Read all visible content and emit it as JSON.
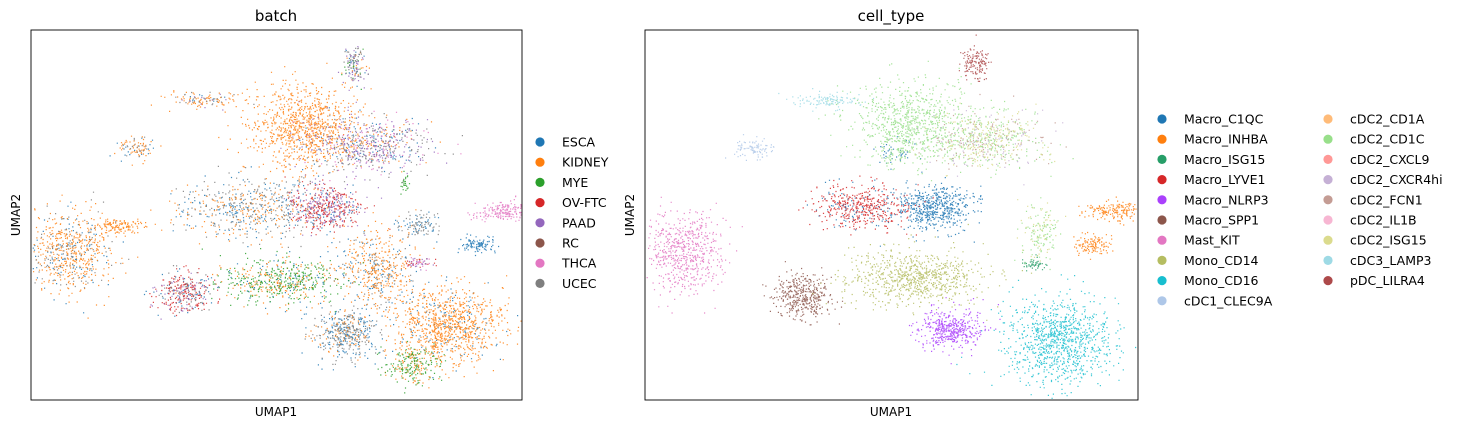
{
  "chart_data": [
    {
      "type": "scatter",
      "title": "batch",
      "xlabel": "UMAP1",
      "ylabel": "UMAP2",
      "xlim": [
        0,
        100
      ],
      "ylim": [
        0,
        100
      ],
      "grid": false,
      "ticks": false,
      "legend_position": "right",
      "series": [
        {
          "name": "ESCA",
          "color": "#1f77b4"
        },
        {
          "name": "KIDNEY",
          "color": "#ff7f0e"
        },
        {
          "name": "MYE",
          "color": "#2ca02c"
        },
        {
          "name": "OV-FTC",
          "color": "#d62728"
        },
        {
          "name": "PAAD",
          "color": "#9467bd"
        },
        {
          "name": "RC",
          "color": "#8c564b"
        },
        {
          "name": "THCA",
          "color": "#e377c2"
        },
        {
          "name": "UCEC",
          "color": "#7f7f7f"
        }
      ],
      "clusters": [
        {
          "x": 66,
          "y": 90,
          "sx": 1.2,
          "sy": 2.5,
          "n": 140,
          "mix": [
            [
              0,
              1
            ],
            [
              1,
              1
            ],
            [
              2,
              1
            ],
            [
              4,
              2
            ],
            [
              7,
              2
            ]
          ]
        },
        {
          "x": 35,
          "y": 81,
          "sx": 3.5,
          "sy": 1.0,
          "n": 120,
          "mix": [
            [
              1,
              3
            ],
            [
              0,
              1
            ],
            [
              4,
              1
            ],
            [
              7,
              1
            ]
          ]
        },
        {
          "x": 21,
          "y": 68,
          "sx": 2.0,
          "sy": 1.6,
          "n": 90,
          "mix": [
            [
              1,
              3
            ],
            [
              0,
              1
            ],
            [
              7,
              1
            ]
          ]
        },
        {
          "x": 56,
          "y": 74,
          "sx": 5.5,
          "sy": 5.5,
          "n": 900,
          "mix": [
            [
              1,
              1
            ]
          ]
        },
        {
          "x": 69,
          "y": 69,
          "sx": 6.5,
          "sy": 4.0,
          "n": 700,
          "mix": [
            [
              4,
              2
            ],
            [
              7,
              2
            ],
            [
              0,
              1
            ],
            [
              1,
              1
            ],
            [
              6,
              1
            ]
          ]
        },
        {
          "x": 45,
          "y": 52,
          "sx": 7.5,
          "sy": 4.0,
          "n": 600,
          "mix": [
            [
              1,
              2
            ],
            [
              0,
              2
            ],
            [
              7,
              2
            ]
          ]
        },
        {
          "x": 60,
          "y": 52,
          "sx": 3.8,
          "sy": 3.2,
          "n": 500,
          "mix": [
            [
              3,
              4
            ],
            [
              4,
              2
            ],
            [
              0,
              1
            ]
          ]
        },
        {
          "x": 8,
          "y": 40,
          "sx": 4.5,
          "sy": 5.5,
          "n": 650,
          "mix": [
            [
              1,
              4
            ],
            [
              0,
              1
            ],
            [
              7,
              1
            ]
          ]
        },
        {
          "x": 18,
          "y": 47,
          "sx": 2.5,
          "sy": 1.0,
          "n": 120,
          "mix": [
            [
              1,
              1
            ]
          ]
        },
        {
          "x": 31,
          "y": 29,
          "sx": 3.0,
          "sy": 3.0,
          "n": 350,
          "mix": [
            [
              3,
              3
            ],
            [
              0,
              1
            ],
            [
              7,
              1
            ],
            [
              4,
              1
            ]
          ]
        },
        {
          "x": 51,
          "y": 32,
          "sx": 6.5,
          "sy": 3.2,
          "n": 600,
          "mix": [
            [
              2,
              4
            ],
            [
              1,
              2
            ],
            [
              0,
              1
            ]
          ]
        },
        {
          "x": 70,
          "y": 35,
          "sx": 4.0,
          "sy": 5.0,
          "n": 500,
          "mix": [
            [
              1,
              4
            ],
            [
              0,
              1
            ],
            [
              7,
              1
            ]
          ]
        },
        {
          "x": 64,
          "y": 18,
          "sx": 3.2,
          "sy": 3.2,
          "n": 450,
          "mix": [
            [
              0,
              2
            ],
            [
              7,
              2
            ],
            [
              1,
              1
            ]
          ]
        },
        {
          "x": 85,
          "y": 20,
          "sx": 5.5,
          "sy": 5.0,
          "n": 1000,
          "mix": [
            [
              1,
              6
            ],
            [
              0,
              1
            ]
          ]
        },
        {
          "x": 78,
          "y": 9,
          "sx": 3.0,
          "sy": 2.5,
          "n": 250,
          "mix": [
            [
              2,
              4
            ],
            [
              1,
              2
            ]
          ]
        },
        {
          "x": 96,
          "y": 51,
          "sx": 3.0,
          "sy": 1.2,
          "n": 180,
          "mix": [
            [
              6,
              1
            ]
          ]
        },
        {
          "x": 91,
          "y": 42,
          "sx": 1.8,
          "sy": 1.2,
          "n": 110,
          "mix": [
            [
              0,
              1
            ]
          ]
        },
        {
          "x": 79,
          "y": 47,
          "sx": 2.0,
          "sy": 1.8,
          "n": 110,
          "mix": [
            [
              7,
              2
            ],
            [
              0,
              1
            ]
          ]
        },
        {
          "x": 79,
          "y": 37,
          "sx": 1.6,
          "sy": 0.8,
          "n": 60,
          "mix": [
            [
              4,
              1
            ],
            [
              6,
              1
            ],
            [
              3,
              1
            ]
          ]
        },
        {
          "x": 76,
          "y": 58,
          "sx": 0.5,
          "sy": 1.5,
          "n": 25,
          "mix": [
            [
              2,
              1
            ]
          ]
        }
      ]
    },
    {
      "type": "scatter",
      "title": "cell_type",
      "xlabel": "UMAP1",
      "ylabel": "UMAP2",
      "xlim": [
        0,
        100
      ],
      "ylim": [
        0,
        100
      ],
      "grid": false,
      "ticks": false,
      "legend_position": "right",
      "series": [
        {
          "name": "Macro_C1QC",
          "color": "#1f77b4"
        },
        {
          "name": "Macro_INHBA",
          "color": "#ff7f0e"
        },
        {
          "name": "Macro_ISG15",
          "color": "#279e68"
        },
        {
          "name": "Macro_LYVE1",
          "color": "#d62728"
        },
        {
          "name": "Macro_NLRP3",
          "color": "#aa40fc"
        },
        {
          "name": "Macro_SPP1",
          "color": "#8c564b"
        },
        {
          "name": "Mast_KIT",
          "color": "#e377c2"
        },
        {
          "name": "Mono_CD14",
          "color": "#b5bd61"
        },
        {
          "name": "Mono_CD16",
          "color": "#17becf"
        },
        {
          "name": "cDC1_CLEC9A",
          "color": "#aec7e8"
        },
        {
          "name": "cDC2_CD1A",
          "color": "#ffbb78"
        },
        {
          "name": "cDC2_CD1C",
          "color": "#98df8a"
        },
        {
          "name": "cDC2_CXCL9",
          "color": "#ff9896"
        },
        {
          "name": "cDC2_CXCR4hi",
          "color": "#c5b0d5"
        },
        {
          "name": "cDC2_FCN1",
          "color": "#c49c94"
        },
        {
          "name": "cDC2_IL1B",
          "color": "#f7b6d2"
        },
        {
          "name": "cDC2_ISG15",
          "color": "#dbdb8d"
        },
        {
          "name": "cDC3_LAMP3",
          "color": "#9edae5"
        },
        {
          "name": "pDC_LILRA4",
          "color": "#ad494a"
        }
      ],
      "clusters": [
        {
          "x": 67,
          "y": 91,
          "sx": 1.5,
          "sy": 2.0,
          "n": 140,
          "mix": [
            [
              18,
              1
            ]
          ]
        },
        {
          "x": 37,
          "y": 81,
          "sx": 3.5,
          "sy": 1.0,
          "n": 120,
          "mix": [
            [
              17,
              1
            ]
          ]
        },
        {
          "x": 22,
          "y": 68,
          "sx": 1.8,
          "sy": 1.4,
          "n": 90,
          "mix": [
            [
              9,
              1
            ]
          ]
        },
        {
          "x": 54,
          "y": 75,
          "sx": 6.0,
          "sy": 5.5,
          "n": 800,
          "mix": [
            [
              11,
              1
            ]
          ]
        },
        {
          "x": 69,
          "y": 70,
          "sx": 6.0,
          "sy": 4.0,
          "n": 700,
          "mix": [
            [
              16,
              2
            ],
            [
              11,
              2
            ],
            [
              13,
              1
            ],
            [
              14,
              1
            ]
          ]
        },
        {
          "x": 44,
          "y": 52,
          "sx": 5.0,
          "sy": 3.0,
          "n": 500,
          "mix": [
            [
              3,
              4
            ],
            [
              0,
              1
            ]
          ]
        },
        {
          "x": 59,
          "y": 52,
          "sx": 4.0,
          "sy": 3.2,
          "n": 550,
          "mix": [
            [
              0,
              1
            ]
          ]
        },
        {
          "x": 8,
          "y": 40,
          "sx": 4.0,
          "sy": 5.5,
          "n": 600,
          "mix": [
            [
              6,
              1
            ]
          ]
        },
        {
          "x": 32,
          "y": 28,
          "sx": 2.8,
          "sy": 3.0,
          "n": 400,
          "mix": [
            [
              5,
              1
            ]
          ]
        },
        {
          "x": 55,
          "y": 33,
          "sx": 7.0,
          "sy": 3.5,
          "n": 800,
          "mix": [
            [
              7,
              1
            ]
          ]
        },
        {
          "x": 62,
          "y": 19,
          "sx": 3.2,
          "sy": 2.8,
          "n": 450,
          "mix": [
            [
              4,
              1
            ]
          ]
        },
        {
          "x": 84,
          "y": 16,
          "sx": 5.5,
          "sy": 6.0,
          "n": 1000,
          "mix": [
            [
              8,
              1
            ]
          ]
        },
        {
          "x": 95,
          "y": 51,
          "sx": 3.0,
          "sy": 1.2,
          "n": 180,
          "mix": [
            [
              1,
              1
            ]
          ]
        },
        {
          "x": 91,
          "y": 42,
          "sx": 1.8,
          "sy": 1.3,
          "n": 120,
          "mix": [
            [
              1,
              1
            ]
          ]
        },
        {
          "x": 80,
          "y": 45,
          "sx": 2.0,
          "sy": 4.0,
          "n": 160,
          "mix": [
            [
              11,
              2
            ],
            [
              16,
              1
            ]
          ]
        },
        {
          "x": 79,
          "y": 37,
          "sx": 1.4,
          "sy": 0.8,
          "n": 50,
          "mix": [
            [
              2,
              1
            ]
          ]
        },
        {
          "x": 50,
          "y": 66,
          "sx": 2.0,
          "sy": 2.0,
          "n": 80,
          "mix": [
            [
              0,
              1
            ],
            [
              11,
              1
            ]
          ]
        }
      ]
    }
  ]
}
